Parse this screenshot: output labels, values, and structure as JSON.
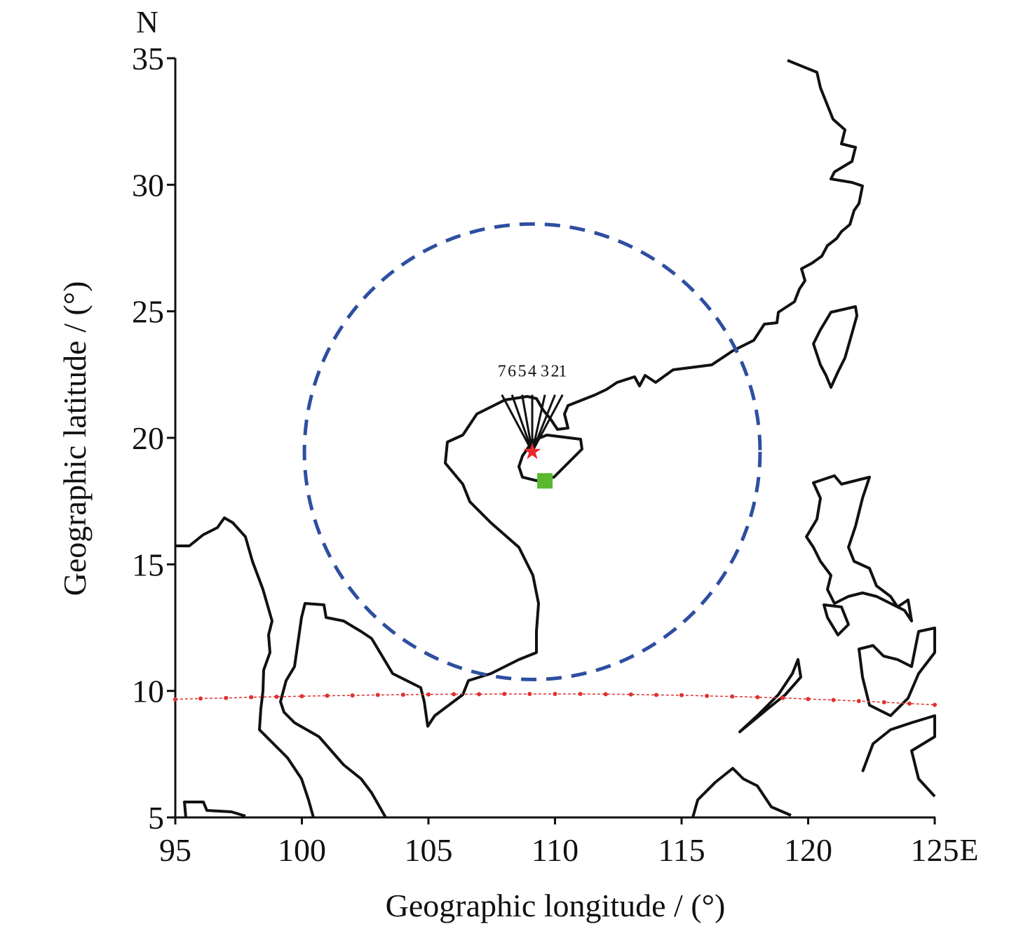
{
  "chart_data": {
    "type": "map",
    "xlabel": "Geographic longitude / (°)",
    "ylabel": "Geographic latitude / (°)",
    "xunit": "E",
    "yunit": "N",
    "xlim": [
      95,
      125
    ],
    "ylim": [
      5,
      35
    ],
    "xticks": [
      95,
      100,
      105,
      110,
      115,
      120,
      125
    ],
    "yticks": [
      5,
      10,
      15,
      20,
      25,
      30,
      35
    ],
    "station": {
      "lon": 109.1,
      "lat": 19.45,
      "color": "#e8282e"
    },
    "site": {
      "lon": 109.6,
      "lat": 18.3,
      "color": "#5ab92e"
    },
    "circle": {
      "lon": 109.1,
      "lat": 19.45,
      "radius": 9,
      "color": "#2e4fa0"
    },
    "rays": [
      {
        "label": "1",
        "lon": 110.3,
        "lat": 21.7
      },
      {
        "label": "2",
        "lon": 110.0,
        "lat": 21.7
      },
      {
        "label": "3",
        "lon": 109.6,
        "lat": 21.7
      },
      {
        "label": "4",
        "lon": 109.1,
        "lat": 21.7
      },
      {
        "label": "5",
        "lon": 108.7,
        "lat": 21.7
      },
      {
        "label": "6",
        "lon": 108.3,
        "lat": 21.7
      },
      {
        "label": "7",
        "lon": 107.9,
        "lat": 21.7
      }
    ],
    "route": {
      "color": "#e03030",
      "lon": [
        95,
        96,
        97,
        98,
        99,
        100,
        101,
        102,
        103,
        104,
        105,
        106,
        107,
        108,
        109,
        110,
        111,
        112,
        113,
        114,
        115,
        116,
        117,
        118,
        119,
        120,
        121,
        122,
        123,
        124,
        125
      ],
      "lat": [
        9.67,
        9.7,
        9.72,
        9.75,
        9.77,
        9.79,
        9.81,
        9.82,
        9.84,
        9.85,
        9.86,
        9.87,
        9.87,
        9.88,
        9.88,
        9.88,
        9.88,
        9.87,
        9.86,
        9.84,
        9.83,
        9.8,
        9.78,
        9.75,
        9.72,
        9.68,
        9.64,
        9.6,
        9.55,
        9.5,
        9.45
      ]
    }
  }
}
